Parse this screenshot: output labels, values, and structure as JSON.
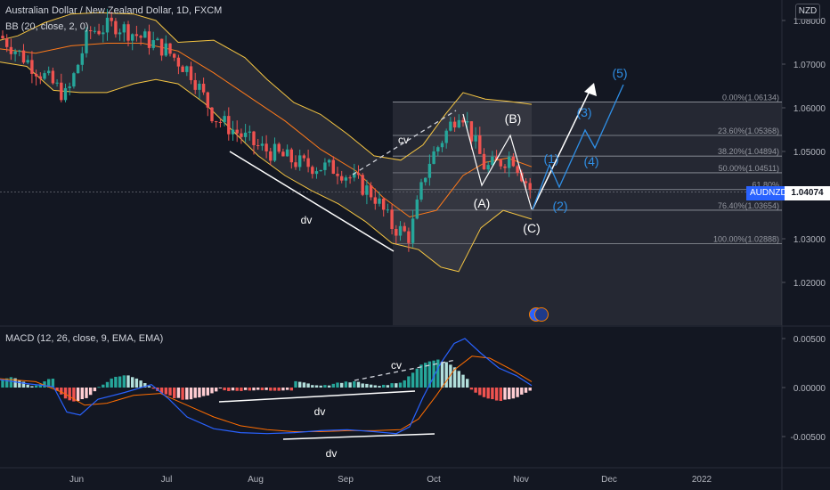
{
  "header": {
    "title": "Australian Dollar / New Zealand Dollar, 1D, FXCM",
    "indicator_bb": "BB (20, close, 2, 0)",
    "currency": "NZD"
  },
  "macd_panel": {
    "label": "MACD (12, 26, close, 9, EMA, EMA)"
  },
  "price_axis": {
    "ticks": [
      "1.08000",
      "1.07000",
      "1.06000",
      "1.05000",
      "1.04000",
      "1.03000",
      "1.02000"
    ],
    "tick_values": [
      1.08,
      1.07,
      1.06,
      1.05,
      1.04,
      1.03,
      1.02
    ],
    "current_symbol": "AUDNZD",
    "current_price": "1.04074",
    "current_value": 1.04074
  },
  "macd_axis": {
    "ticks": [
      "0.00500",
      "0.00000",
      "-0.00500"
    ],
    "tick_values": [
      0.005,
      0.0,
      -0.005
    ]
  },
  "time_axis": {
    "ticks": [
      "Jun",
      "Jul",
      "Aug",
      "Sep",
      "Oct",
      "Nov",
      "Dec",
      "2022"
    ]
  },
  "fibonacci": {
    "levels": [
      {
        "label": "0.00%(1.06134)",
        "value": 1.06134
      },
      {
        "label": "23.60%(1.05368)",
        "value": 1.05368
      },
      {
        "label": "38.20%(1.04894)",
        "value": 1.04894
      },
      {
        "label": "50.00%(1.04511)",
        "value": 1.04511
      },
      {
        "label": "61.80%",
        "value": 1.04128
      },
      {
        "label": "76.40%(1.03654)",
        "value": 1.03654
      },
      {
        "label": "100.00%(1.02888)",
        "value": 1.02888
      }
    ]
  },
  "annotations": {
    "dv_price": "dv",
    "cv_price": "cv",
    "dv_macd_upper": "dv",
    "dv_macd_lower": "dv",
    "cv_macd": "cv",
    "wave_A": "(A)",
    "wave_B": "(B)",
    "wave_C": "(C)",
    "wave_1": "(1)",
    "wave_2": "(2)",
    "wave_3": "(3)",
    "wave_4": "(4)",
    "wave_5": "(5)"
  },
  "colors": {
    "background": "#131722",
    "bull": "#26a69a",
    "bear": "#ef5350",
    "bb_band": "#f5c542",
    "bb_basis": "#ff7a1a",
    "macd_line": "#2962ff",
    "signal_line": "#ff6d00",
    "wave_white": "#ffffff",
    "wave_blue": "#2f8fe6"
  },
  "chart_data": {
    "type": "candlestick",
    "instrument": "AUDNZD",
    "timeframe": "1D",
    "x_range": [
      "May",
      "2022"
    ],
    "y_range": [
      1.011,
      1.082
    ],
    "price_path": [
      {
        "date": "May",
        "close": 1.0765
      },
      {
        "date": "late May",
        "close": 1.0625
      },
      {
        "date": "early Jun",
        "close": 1.0775
      },
      {
        "date": "mid Jun",
        "close": 1.079
      },
      {
        "date": "Jul",
        "close": 1.0735
      },
      {
        "date": "mid Jul",
        "close": 1.068
      },
      {
        "date": "late Jul",
        "close": 1.058
      },
      {
        "date": "Aug",
        "close": 1.051
      },
      {
        "date": "mid Aug",
        "close": 1.047
      },
      {
        "date": "late Aug",
        "close": 1.046
      },
      {
        "date": "Sep",
        "close": 1.04
      },
      {
        "date": "mid Sep",
        "close": 1.033
      },
      {
        "date": "late Sep",
        "close": 1.0305
      },
      {
        "date": "early Oct",
        "close": 1.047
      },
      {
        "date": "Oct",
        "close": 1.06
      },
      {
        "date": "mid Oct",
        "close": 1.046
      },
      {
        "date": "late Oct",
        "close": 1.049
      },
      {
        "date": "Nov",
        "close": 1.0407
      }
    ],
    "macd_range": [
      -0.0075,
      0.0075
    ]
  }
}
